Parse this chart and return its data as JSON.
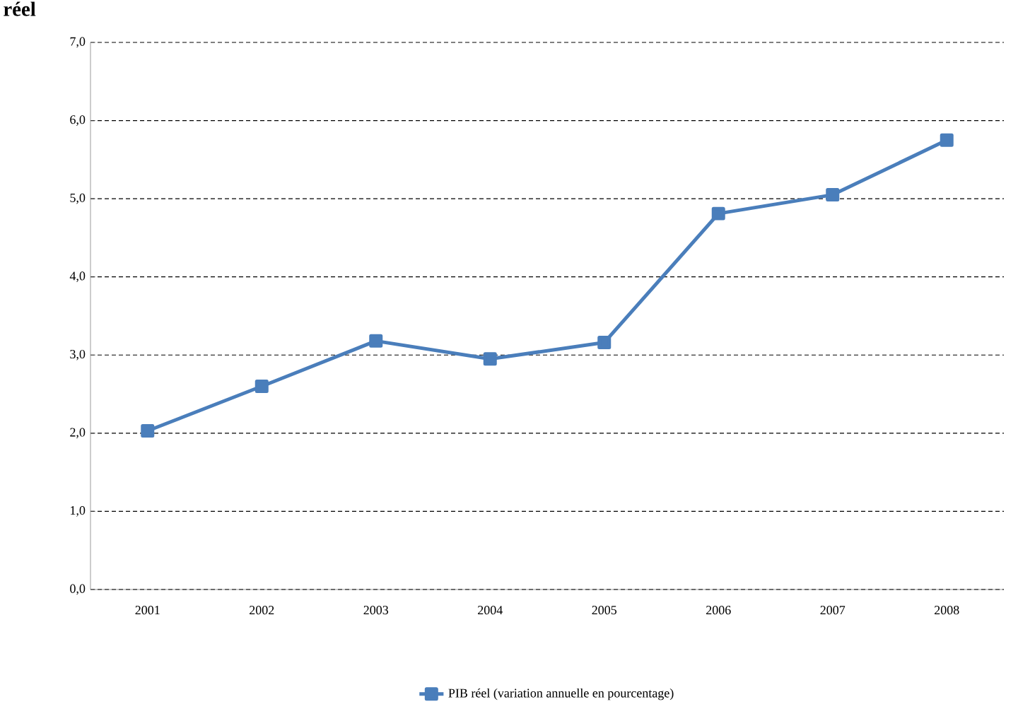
{
  "chart_data": {
    "type": "line",
    "title": "réel",
    "categories": [
      "2001",
      "2002",
      "2003",
      "2004",
      "2005",
      "2006",
      "2007",
      "2008"
    ],
    "series": [
      {
        "name": "PIB réel (variation annuelle en pourcentage)",
        "color": "#4a7ebb",
        "values": [
          2.03,
          2.6,
          3.18,
          2.95,
          3.16,
          4.81,
          5.05,
          5.75
        ]
      }
    ],
    "ylim": [
      0,
      7
    ],
    "yticks": [
      {
        "value": 0,
        "label": "0,0"
      },
      {
        "value": 1,
        "label": "1,0"
      },
      {
        "value": 2,
        "label": "2,0"
      },
      {
        "value": 3,
        "label": "3,0"
      },
      {
        "value": 4,
        "label": "4,0"
      },
      {
        "value": 5,
        "label": "5,0"
      },
      {
        "value": 6,
        "label": "6,0"
      },
      {
        "value": 7,
        "label": "7,0"
      }
    ],
    "grid": "y",
    "legend": "bottom",
    "marker": "square",
    "line_style": "solid"
  }
}
